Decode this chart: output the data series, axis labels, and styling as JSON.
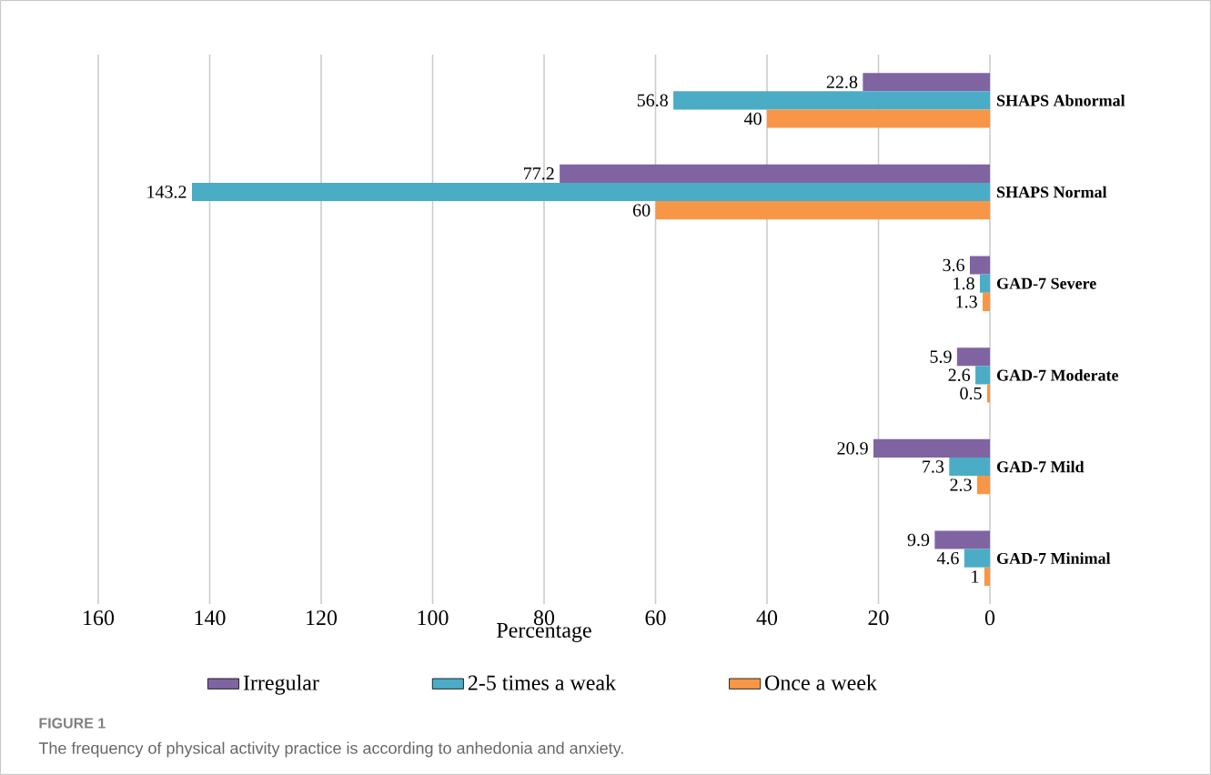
{
  "chart_data": {
    "type": "bar",
    "orientation": "horizontal",
    "categories": [
      "SHAPS Abnormal",
      "SHAPS Normal",
      "GAD-7 Severe",
      "GAD-7 Moderate",
      "GAD-7 Mild",
      "GAD-7 Minimal"
    ],
    "series": [
      {
        "name": "Irregular",
        "color": "#8064a2",
        "values": [
          22.8,
          77.2,
          3.6,
          5.9,
          20.9,
          9.9
        ]
      },
      {
        "name": "2-5 times a weak",
        "color": "#4bacc6",
        "values": [
          56.8,
          143.2,
          1.8,
          2.6,
          7.3,
          4.6
        ]
      },
      {
        "name": "Once a week",
        "color": "#f79646",
        "values": [
          40,
          60,
          1.3,
          0.5,
          2.3,
          1
        ]
      }
    ],
    "xlim": [
      160,
      0
    ],
    "xticks": [
      160,
      140,
      120,
      100,
      80,
      60,
      40,
      20,
      0
    ],
    "xlabel": "Percentage",
    "grid": "x",
    "legend": "bottom",
    "data_labels": true,
    "annotations": [
      "FIGURE 1",
      "The frequency of physical activity practice is according to anhedonia and anxiety."
    ]
  }
}
